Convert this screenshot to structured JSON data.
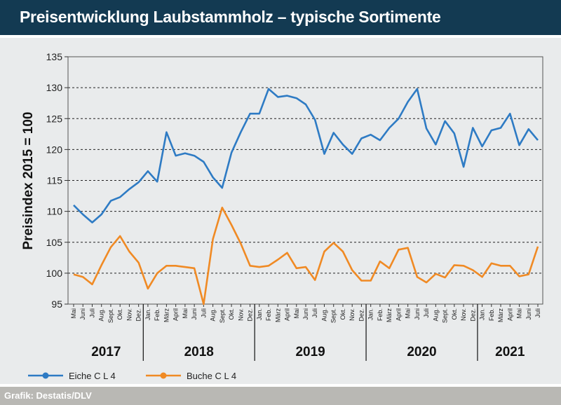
{
  "title": "Preisentwicklung Laubstammholz – typische Sortimente",
  "source": "Grafik: Destatis/DLV",
  "colors": {
    "header": "#133a52",
    "series1": "#2e7bc4",
    "series2": "#f08a24",
    "background": "#e9ebec",
    "footer": "#b9b8b4"
  },
  "chart_data": {
    "type": "line",
    "ylabel": "Preisindex 2015 = 100",
    "ylim": [
      95,
      135
    ],
    "yticks": [
      95,
      100,
      105,
      110,
      115,
      120,
      125,
      130,
      135
    ],
    "grid": true,
    "legend_position": "bottom-left",
    "x": [
      "Mai",
      "Juni",
      "Juli",
      "Aug.",
      "Sept.",
      "Okt.",
      "Nov.",
      "Dez.",
      "Jan.",
      "Feb.",
      "März",
      "April",
      "Mai",
      "Juni",
      "Juli",
      "Aug.",
      "Sept.",
      "Okt.",
      "Nov.",
      "Dez.",
      "Jan.",
      "Feb.",
      "März",
      "April",
      "Mai",
      "Juni",
      "Juli",
      "Aug.",
      "Sept.",
      "Okt.",
      "Nov.",
      "Dez.",
      "Jan.",
      "Feb.",
      "März",
      "April",
      "Mai",
      "Juni",
      "Juli",
      "Aug.",
      "Sept.",
      "Okt.",
      "Nov.",
      "Dez.",
      "Jan.",
      "Feb.",
      "März",
      "April",
      "Mai",
      "Juni",
      "Juli"
    ],
    "years": [
      {
        "label": "2017",
        "start": 0,
        "end": 7
      },
      {
        "label": "2018",
        "start": 8,
        "end": 19
      },
      {
        "label": "2019",
        "start": 20,
        "end": 31
      },
      {
        "label": "2020",
        "start": 32,
        "end": 43
      },
      {
        "label": "2021",
        "start": 44,
        "end": 50
      }
    ],
    "series": [
      {
        "name": "Eiche C L 4",
        "values": [
          111,
          109.5,
          108.2,
          109.5,
          111.7,
          112.3,
          113.6,
          114.7,
          116.5,
          114.8,
          122.8,
          119,
          119.4,
          119,
          118,
          115.5,
          113.8,
          119.5,
          122.8,
          125.8,
          125.8,
          129.8,
          128.5,
          128.7,
          128.3,
          127.3,
          124.8,
          119.3,
          122.7,
          120.8,
          119.3,
          121.8,
          122.4,
          121.5,
          123.5,
          125,
          127.7,
          129.8,
          123.4,
          120.8,
          124.6,
          122.6,
          117.2,
          123.5,
          120.5,
          123.1,
          123.5,
          125.8,
          120.7,
          123.3,
          121.5
        ]
      },
      {
        "name": "Buche C L 4",
        "values": [
          99.8,
          99.4,
          98.2,
          101.3,
          104.2,
          106,
          103.5,
          101.7,
          97.5,
          100,
          101.2,
          101.2,
          101,
          100.8,
          95,
          105.5,
          110.6,
          107.8,
          104.8,
          101.2,
          101,
          101.2,
          102.2,
          103.3,
          100.8,
          101,
          98.9,
          103.5,
          104.9,
          103.5,
          100.5,
          98.8,
          98.8,
          101.9,
          100.8,
          103.8,
          104.1,
          99.4,
          98.5,
          99.9,
          99.3,
          101.3,
          101.2,
          100.5,
          99.4,
          101.6,
          101.2,
          101.2,
          99.5,
          99.8,
          104.3
        ]
      }
    ]
  }
}
